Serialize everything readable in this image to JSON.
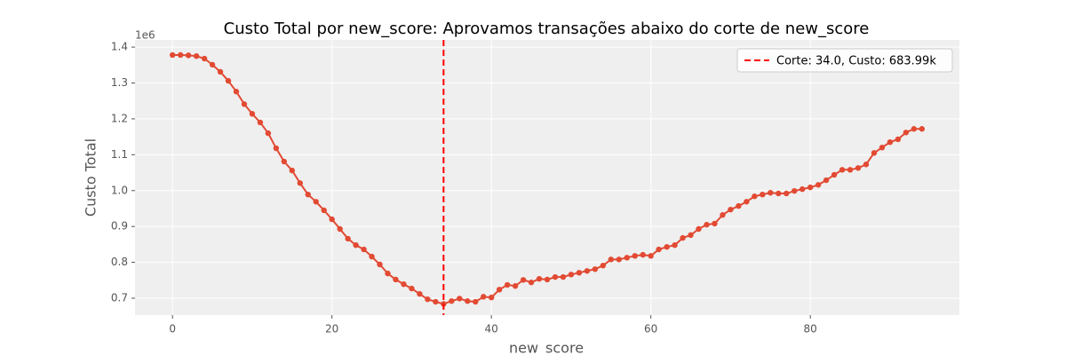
{
  "chart_data": {
    "type": "line",
    "title": "Custo Total por new_score: Aprovamos transações abaixo do corte de new_score",
    "xlabel": "new_score",
    "ylabel": "Custo Total",
    "y_offset_label": "1e6",
    "x": [
      0,
      1,
      2,
      3,
      4,
      5,
      6,
      7,
      8,
      9,
      10,
      11,
      12,
      13,
      14,
      15,
      16,
      17,
      18,
      19,
      20,
      21,
      22,
      23,
      24,
      25,
      26,
      27,
      28,
      29,
      30,
      31,
      32,
      33,
      34,
      35,
      36,
      37,
      38,
      39,
      40,
      41,
      42,
      43,
      44,
      45,
      46,
      47,
      48,
      49,
      50,
      51,
      52,
      53,
      54,
      55,
      56,
      57,
      58,
      59,
      60,
      61,
      62,
      63,
      64,
      65,
      66,
      67,
      68,
      69,
      70,
      71,
      72,
      73,
      74,
      75,
      76,
      77,
      78,
      79,
      80,
      81,
      82,
      83,
      84,
      85,
      86,
      87,
      88,
      89,
      90,
      91,
      92,
      93,
      94
    ],
    "values": [
      1378000,
      1378000,
      1377000,
      1375000,
      1368000,
      1351000,
      1331000,
      1306000,
      1276000,
      1241000,
      1214000,
      1190000,
      1160000,
      1118000,
      1081000,
      1056000,
      1021000,
      989000,
      969000,
      945000,
      920000,
      893000,
      866000,
      848000,
      836000,
      816000,
      794000,
      769000,
      752000,
      739000,
      727000,
      712000,
      697000,
      690000,
      683990,
      692000,
      699000,
      692000,
      690000,
      704000,
      702000,
      724000,
      737000,
      734000,
      751000,
      744000,
      754000,
      752000,
      759000,
      759000,
      766000,
      771000,
      776000,
      781000,
      791000,
      808000,
      808000,
      813000,
      818000,
      821000,
      818000,
      836000,
      843000,
      848000,
      868000,
      876000,
      893000,
      905000,
      908000,
      932000,
      947000,
      957000,
      969000,
      984000,
      989000,
      994000,
      992000,
      992000,
      999000,
      1004000,
      1009000,
      1016000,
      1029000,
      1044000,
      1058000,
      1058000,
      1063000,
      1073000,
      1105000,
      1120000,
      1135000,
      1143000,
      1162000,
      1172000,
      1172000
    ],
    "color": "#e24a33",
    "vline": {
      "x": 34,
      "name": "Corte: 34.0, Custo: 683.99k",
      "color": "#ff0000"
    },
    "xlim": [
      -4.7,
      98.7
    ],
    "xticks": [
      0,
      20,
      40,
      60,
      80
    ],
    "ylim": [
      653000,
      1420000
    ],
    "yticks": [
      {
        "value": 700000,
        "label": "0.7"
      },
      {
        "value": 800000,
        "label": "0.8"
      },
      {
        "value": 900000,
        "label": "0.9"
      },
      {
        "value": 1000000,
        "label": "1.0"
      },
      {
        "value": 1100000,
        "label": "1.1"
      },
      {
        "value": 1200000,
        "label": "1.2"
      },
      {
        "value": 1300000,
        "label": "1.3"
      },
      {
        "value": 1400000,
        "label": "1.4"
      }
    ],
    "grid": true,
    "legend": "upper right"
  }
}
